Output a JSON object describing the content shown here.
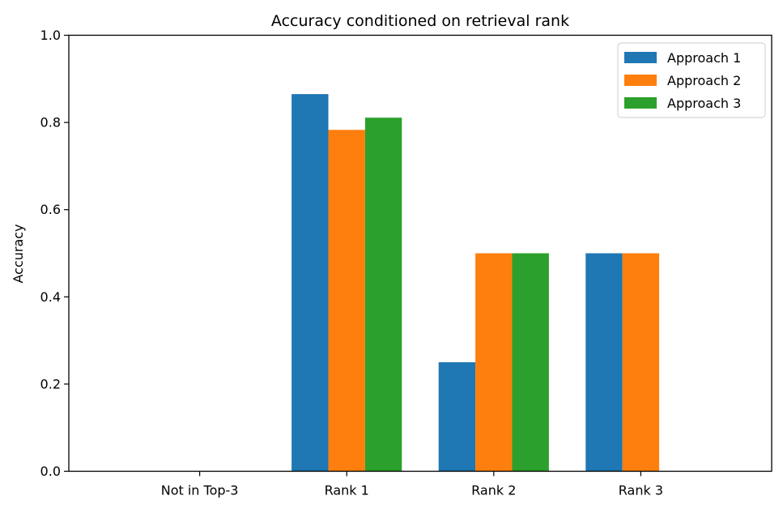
{
  "chart_data": {
    "type": "bar",
    "title": "Accuracy conditioned on retrieval rank",
    "xlabel": "",
    "ylabel": "Accuracy",
    "ylim": [
      0,
      1.0
    ],
    "yticks": [
      "0.0",
      "0.2",
      "0.4",
      "0.6",
      "0.8",
      "1.0"
    ],
    "categories": [
      "Not in Top-3",
      "Rank 1",
      "Rank 2",
      "Rank 3"
    ],
    "series": [
      {
        "name": "Approach 1",
        "color": "#1f77b4",
        "values": [
          0.0,
          0.865,
          0.25,
          0.5
        ]
      },
      {
        "name": "Approach 2",
        "color": "#ff7f0e",
        "values": [
          0.0,
          0.783,
          0.5,
          0.5
        ]
      },
      {
        "name": "Approach 3",
        "color": "#2ca02c",
        "values": [
          0.0,
          0.811,
          0.5,
          0.0
        ]
      }
    ],
    "grid": false,
    "legend_position": "top-right"
  }
}
